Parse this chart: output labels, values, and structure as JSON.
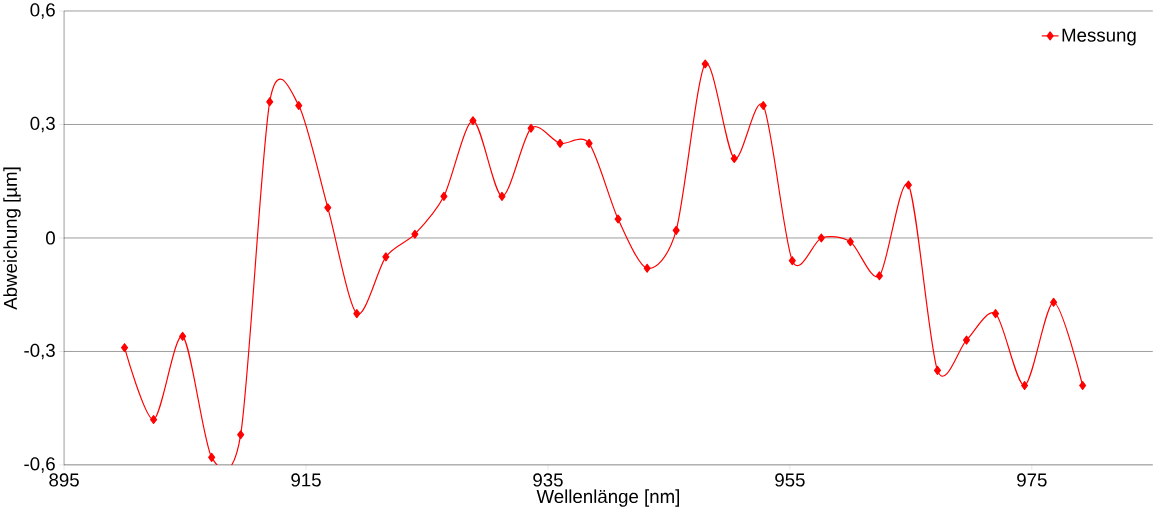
{
  "chart_data": {
    "type": "line",
    "xlabel": "Wellenlänge [nm]",
    "ylabel": "Abweichung [µm]",
    "x": [
      900,
      902.4,
      904.8,
      907.2,
      909.6,
      912,
      914.4,
      916.8,
      919.2,
      921.6,
      924,
      926.4,
      928.8,
      931.2,
      933.6,
      936,
      938.4,
      940.8,
      943.2,
      945.6,
      948,
      950.4,
      952.8,
      955.2,
      957.6,
      960,
      962.4,
      964.8,
      967.2,
      969.6,
      972,
      974.4,
      976.8,
      979.2
    ],
    "series": [
      {
        "name": "Messung",
        "color": "#ff0000",
        "values": [
          -0.29,
          -0.48,
          -0.26,
          -0.58,
          -0.52,
          0.36,
          0.35,
          0.08,
          -0.2,
          -0.05,
          0.01,
          0.11,
          0.31,
          0.11,
          0.29,
          0.25,
          0.25,
          0.05,
          -0.08,
          0.02,
          0.46,
          0.21,
          0.35,
          -0.06,
          0.0,
          -0.01,
          -0.1,
          0.14,
          -0.35,
          -0.27,
          -0.2,
          -0.39,
          -0.17,
          -0.39
        ]
      }
    ],
    "xlim": [
      895,
      985
    ],
    "xticks": [
      895,
      915,
      935,
      955,
      975
    ],
    "ylim": [
      -0.6,
      0.6
    ],
    "yticks": [
      {
        "value": -0.6,
        "label": "-0,6"
      },
      {
        "value": -0.3,
        "label": "-0,3"
      },
      {
        "value": 0,
        "label": "0"
      },
      {
        "value": 0.3,
        "label": "0,3"
      },
      {
        "value": 0.6,
        "label": "0,6"
      }
    ],
    "grid": "y",
    "legend": "top right",
    "marker": "diamond",
    "line_style": "solid"
  }
}
